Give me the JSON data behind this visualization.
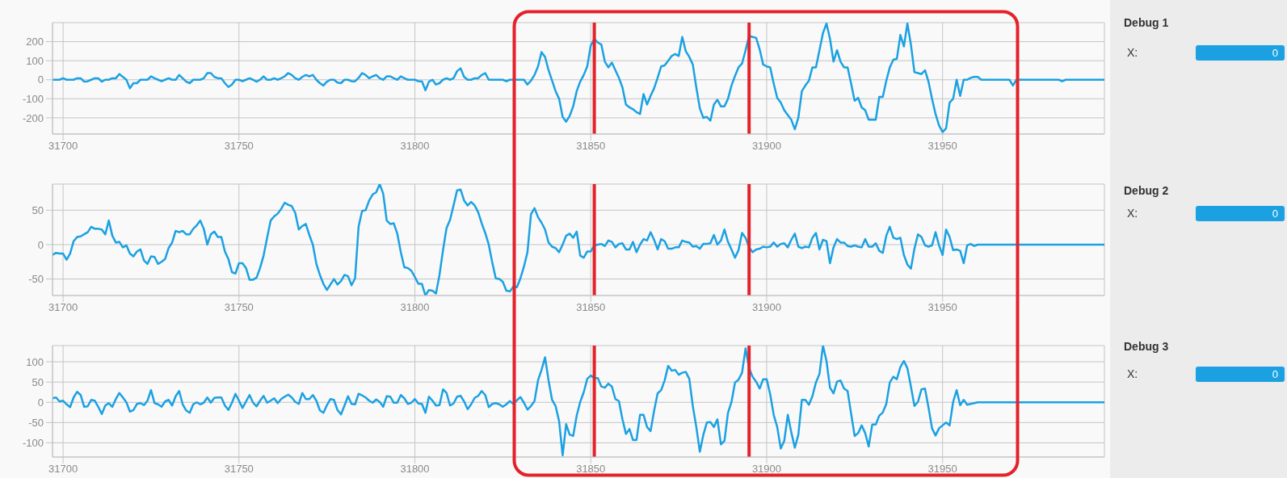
{
  "chart_data": [
    {
      "type": "line",
      "color": "#1ba1e2",
      "xlim": [
        31697,
        31996
      ],
      "xticks": [
        31700,
        31750,
        31800,
        31850,
        31900,
        31950
      ],
      "ylim": [
        -285,
        300
      ],
      "yticks": [
        -200,
        -100,
        0,
        100,
        200
      ],
      "grid": true,
      "ref_lines": [
        {
          "axis": "x",
          "value": 31851,
          "color": "#e3222b"
        },
        {
          "axis": "x",
          "value": 31895,
          "color": "#e3222b"
        }
      ],
      "x": [
        31697,
        31698,
        31699,
        31700,
        31701,
        31702,
        31703,
        31704,
        31705,
        31706,
        31707,
        31708,
        31709,
        31710,
        31711,
        31712,
        31713,
        31714,
        31715,
        31716,
        31717,
        31718,
        31719,
        31720,
        31721,
        31722,
        31723,
        31724,
        31725,
        31726,
        31727,
        31728,
        31729,
        31730,
        31731,
        31732,
        31733,
        31734,
        31735,
        31736,
        31737,
        31738,
        31739,
        31740,
        31741,
        31742,
        31743,
        31744,
        31745,
        31746,
        31747,
        31748,
        31749,
        31750,
        31751,
        31752,
        31753,
        31754,
        31755,
        31756,
        31757,
        31758,
        31759,
        31760,
        31761,
        31762,
        31763,
        31764,
        31765,
        31766,
        31767,
        31768,
        31769,
        31770,
        31771,
        31772,
        31773,
        31774,
        31775,
        31776,
        31777,
        31778,
        31779,
        31780,
        31781,
        31782,
        31783,
        31784,
        31785,
        31786,
        31787,
        31788,
        31789,
        31790,
        31791,
        31792,
        31793,
        31794,
        31795,
        31796,
        31797,
        31798,
        31799,
        31800,
        31801,
        31802,
        31803,
        31804,
        31805,
        31806,
        31807,
        31808,
        31809,
        31810,
        31811,
        31812,
        31813,
        31814,
        31815,
        31816,
        31817,
        31818,
        31819,
        31820,
        31821,
        31822,
        31823,
        31824,
        31825,
        31826,
        31827,
        31828,
        31829,
        31830,
        31831,
        31832,
        31833,
        31834,
        31835,
        31836,
        31837,
        31838,
        31839,
        31840,
        31841,
        31842,
        31843,
        31844,
        31845,
        31846,
        31847,
        31848,
        31849,
        31850,
        31851,
        31852,
        31853,
        31854,
        31855,
        31856,
        31857,
        31858,
        31859,
        31860,
        31861,
        31862,
        31863,
        31864,
        31865,
        31866,
        31867,
        31868,
        31869,
        31870,
        31871,
        31872,
        31873,
        31874,
        31875,
        31876,
        31877,
        31878,
        31879,
        31880,
        31881,
        31882,
        31883,
        31884,
        31885,
        31886,
        31887,
        31888,
        31889,
        31890,
        31891,
        31892,
        31893,
        31894,
        31895,
        31896,
        31897,
        31898,
        31899,
        31900,
        31901,
        31902,
        31903,
        31904,
        31905,
        31906,
        31907,
        31908,
        31909,
        31910,
        31911,
        31912,
        31913,
        31914,
        31915,
        31916,
        31917,
        31918,
        31919,
        31920,
        31921,
        31922,
        31923,
        31924,
        31925,
        31926,
        31927,
        31928,
        31929,
        31930,
        31931,
        31932,
        31933,
        31934,
        31935,
        31936,
        31937,
        31938,
        31939,
        31940,
        31941,
        31942,
        31943,
        31944,
        31945,
        31946,
        31947,
        31948,
        31949,
        31950,
        31951,
        31952,
        31953,
        31954,
        31955,
        31956,
        31957,
        31958,
        31959,
        31960,
        31961,
        31969,
        31970,
        31971,
        31983,
        31984,
        31985,
        31996
      ],
      "values": [
        0,
        0,
        0,
        8,
        0,
        0,
        0,
        8,
        8,
        -10,
        -8,
        0,
        8,
        8,
        -10,
        0,
        0,
        8,
        8,
        30,
        15,
        0,
        -45,
        -18,
        -18,
        0,
        0,
        0,
        18,
        8,
        0,
        -8,
        0,
        8,
        0,
        0,
        25,
        8,
        -10,
        -18,
        0,
        0,
        0,
        8,
        35,
        35,
        15,
        8,
        8,
        -18,
        -38,
        -25,
        0,
        0,
        -8,
        0,
        8,
        0,
        -10,
        0,
        18,
        0,
        0,
        8,
        0,
        8,
        18,
        35,
        25,
        8,
        0,
        15,
        25,
        18,
        25,
        0,
        -18,
        -30,
        -10,
        0,
        0,
        -15,
        -18,
        0,
        0,
        -8,
        -8,
        10,
        35,
        25,
        8,
        18,
        25,
        8,
        0,
        18,
        18,
        8,
        0,
        18,
        8,
        0,
        0,
        0,
        -8,
        -8,
        -55,
        -10,
        0,
        -25,
        -18,
        0,
        8,
        0,
        8,
        45,
        60,
        15,
        0,
        0,
        8,
        8,
        25,
        35,
        0,
        0,
        0,
        0,
        0,
        -8,
        0,
        0,
        0,
        0,
        0,
        -25,
        -5,
        25,
        70,
        145,
        120,
        50,
        -5,
        -60,
        -100,
        -195,
        -220,
        -190,
        -140,
        -60,
        -10,
        25,
        70,
        180,
        215,
        195,
        185,
        95,
        65,
        90,
        50,
        10,
        -40,
        -130,
        -145,
        -155,
        -170,
        -180,
        -75,
        -130,
        -85,
        -45,
        10,
        70,
        75,
        100,
        125,
        135,
        125,
        225,
        150,
        120,
        80,
        -40,
        -150,
        -200,
        -195,
        -215,
        -130,
        -105,
        -140,
        -140,
        -100,
        -30,
        20,
        65,
        85,
        155,
        230,
        225,
        220,
        160,
        80,
        70,
        65,
        -20,
        -95,
        -120,
        -160,
        -185,
        -210,
        -260,
        -200,
        -60,
        -30,
        -5,
        65,
        65,
        155,
        245,
        295,
        215,
        95,
        155,
        95,
        65,
        65,
        -20,
        -110,
        -95,
        -145,
        -160,
        -210,
        -210,
        -210,
        -90,
        -90,
        -5,
        65,
        105,
        110,
        235,
        175,
        295,
        185,
        40,
        35,
        30,
        50,
        -10,
        -100,
        -180,
        -240,
        -275,
        -255,
        -120,
        -100,
        0,
        -85,
        0,
        0,
        10,
        15,
        15,
        0,
        0,
        -30,
        0,
        0,
        -8,
        0,
        0
      ]
    },
    {
      "type": "other",
      "title": "Debug 1",
      "annotations": [
        "X:",
        "0"
      ]
    },
    {
      "type": "line",
      "color": "#1ba1e2",
      "xlim": [
        31697,
        31996
      ],
      "xticks": [
        31700,
        31750,
        31800,
        31850,
        31900,
        31950
      ],
      "ylim": [
        -74,
        88
      ],
      "yticks": [
        -50,
        0,
        50
      ],
      "grid": true,
      "ref_lines": [
        {
          "axis": "x",
          "value": 31851,
          "color": "#e3222b"
        },
        {
          "axis": "x",
          "value": 31895,
          "color": "#e3222b"
        }
      ],
      "x": [
        31697,
        31698,
        31699,
        31700,
        31701,
        31702,
        31703,
        31704,
        31705,
        31706,
        31707,
        31708,
        31709,
        31710,
        31711,
        31712,
        31713,
        31714,
        31715,
        31716,
        31717,
        31718,
        31719,
        31720,
        31721,
        31722,
        31723,
        31724,
        31725,
        31726,
        31727,
        31728,
        31729,
        31730,
        31731,
        31732,
        31733,
        31734,
        31735,
        31736,
        31737,
        31738,
        31739,
        31740,
        31741,
        31742,
        31743,
        31744,
        31745,
        31746,
        31747,
        31748,
        31749,
        31750,
        31751,
        31752,
        31753,
        31754,
        31755,
        31756,
        31757,
        31758,
        31759,
        31760,
        31761,
        31762,
        31763,
        31764,
        31765,
        31766,
        31767,
        31768,
        31769,
        31770,
        31771,
        31772,
        31773,
        31774,
        31775,
        31776,
        31777,
        31778,
        31779,
        31780,
        31781,
        31782,
        31783,
        31784,
        31785,
        31786,
        31787,
        31788,
        31789,
        31790,
        31791,
        31792,
        31793,
        31794,
        31795,
        31796,
        31797,
        31798,
        31799,
        31800,
        31801,
        31802,
        31803,
        31804,
        31805,
        31806,
        31807,
        31808,
        31809,
        31810,
        31811,
        31812,
        31813,
        31814,
        31815,
        31816,
        31817,
        31818,
        31819,
        31820,
        31821,
        31822,
        31823,
        31824,
        31825,
        31826,
        31827,
        31828,
        31829,
        31830,
        31831,
        31832,
        31833,
        31834,
        31835,
        31836,
        31837,
        31838,
        31839,
        31840,
        31841,
        31842,
        31843,
        31844,
        31845,
        31846,
        31847,
        31848,
        31849,
        31850,
        31851,
        31852,
        31853,
        31854,
        31855,
        31856,
        31857,
        31858,
        31859,
        31860,
        31861,
        31862,
        31863,
        31864,
        31865,
        31866,
        31867,
        31868,
        31869,
        31870,
        31871,
        31872,
        31873,
        31874,
        31875,
        31876,
        31877,
        31878,
        31879,
        31880,
        31881,
        31882,
        31883,
        31884,
        31885,
        31886,
        31887,
        31888,
        31889,
        31890,
        31891,
        31892,
        31893,
        31894,
        31895,
        31896,
        31897,
        31898,
        31899,
        31900,
        31901,
        31902,
        31903,
        31904,
        31905,
        31906,
        31907,
        31908,
        31909,
        31910,
        31911,
        31912,
        31913,
        31914,
        31915,
        31916,
        31917,
        31918,
        31919,
        31920,
        31921,
        31922,
        31923,
        31924,
        31925,
        31926,
        31927,
        31928,
        31929,
        31930,
        31931,
        31932,
        31933,
        31934,
        31935,
        31936,
        31937,
        31938,
        31939,
        31940,
        31941,
        31942,
        31943,
        31944,
        31945,
        31946,
        31947,
        31948,
        31949,
        31950,
        31951,
        31952,
        31953,
        31954,
        31955,
        31956,
        31957,
        31958,
        31959,
        31960,
        31996
      ],
      "values": [
        -15,
        -12,
        -13,
        -13,
        -22,
        -13,
        5,
        11,
        12,
        15,
        18,
        26,
        23,
        23,
        22,
        15,
        35,
        13,
        3,
        4,
        -4,
        -1,
        -13,
        -17,
        -10,
        -7,
        -23,
        -28,
        -17,
        -18,
        -28,
        -25,
        -21,
        -5,
        3,
        20,
        18,
        20,
        15,
        15,
        23,
        28,
        35,
        23,
        0,
        15,
        19,
        11,
        11,
        -10,
        -21,
        -40,
        -42,
        -27,
        -27,
        -34,
        -51,
        -51,
        -48,
        -34,
        -16,
        10,
        35,
        41,
        45,
        52,
        61,
        58,
        56,
        46,
        22,
        27,
        30,
        14,
        0,
        -28,
        -44,
        -57,
        -66,
        -58,
        -50,
        -58,
        -53,
        -44,
        -46,
        -59,
        -49,
        26,
        49,
        50,
        64,
        73,
        76,
        88,
        74,
        35,
        30,
        31,
        16,
        -11,
        -33,
        -34,
        -38,
        -47,
        -57,
        -57,
        -74,
        -66,
        -67,
        -71,
        -44,
        -8,
        24,
        36,
        57,
        79,
        80,
        64,
        57,
        62,
        57,
        47,
        31,
        17,
        0,
        -26,
        -49,
        -50,
        -54,
        -67,
        -68,
        -61,
        -62,
        -49,
        -32,
        -11,
        44,
        53,
        40,
        32,
        22,
        3,
        -3,
        -5,
        -11,
        0,
        13,
        16,
        10,
        19,
        -16,
        -19,
        -10,
        -10,
        -1,
        0,
        1,
        -2,
        6,
        4,
        -4,
        1,
        2,
        -7,
        -7,
        4,
        -11,
        0,
        8,
        6,
        18,
        7,
        -7,
        8,
        5,
        -6,
        -6,
        -4,
        -4,
        6,
        4,
        3,
        -3,
        -2,
        -6,
        1,
        1,
        2,
        14,
        0,
        6,
        22,
        4,
        -7,
        -19,
        -8,
        17,
        10,
        -4,
        -11,
        -7,
        -6,
        -3,
        -4,
        -3,
        3,
        -3,
        1,
        2,
        -4,
        7,
        16,
        -3,
        -5,
        -3,
        -4,
        10,
        17,
        -7,
        7,
        5,
        -27,
        -4,
        8,
        3,
        3,
        -2,
        -3,
        -1,
        -3,
        -4,
        8,
        -3,
        -3,
        2,
        -9,
        -12,
        13,
        26,
        10,
        8,
        10,
        -15,
        -29,
        -35,
        -6,
        15,
        11,
        -1,
        -3,
        -1,
        18,
        -1,
        -15,
        22,
        11,
        -8,
        -7,
        -9,
        -27,
        -1,
        1,
        -2,
        0,
        0
      ]
    },
    {
      "type": "other",
      "title": "Debug 2",
      "annotations": [
        "X:",
        "0"
      ]
    },
    {
      "type": "line",
      "color": "#1ba1e2",
      "xlim": [
        31697,
        31996
      ],
      "xticks": [
        31700,
        31750,
        31800,
        31850,
        31900,
        31950
      ],
      "ylim": [
        -135,
        140
      ],
      "yticks": [
        -100,
        -50,
        0,
        50,
        100
      ],
      "grid": true,
      "ref_lines": [
        {
          "axis": "x",
          "value": 31851,
          "color": "#e3222b"
        },
        {
          "axis": "x",
          "value": 31895,
          "color": "#e3222b"
        }
      ],
      "x": [
        31697,
        31698,
        31699,
        31700,
        31701,
        31702,
        31703,
        31704,
        31705,
        31706,
        31707,
        31708,
        31709,
        31710,
        31711,
        31712,
        31713,
        31714,
        31715,
        31716,
        31717,
        31718,
        31719,
        31720,
        31721,
        31722,
        31723,
        31724,
        31725,
        31726,
        31727,
        31728,
        31729,
        31730,
        31731,
        31732,
        31733,
        31734,
        31735,
        31736,
        31737,
        31738,
        31739,
        31740,
        31741,
        31742,
        31743,
        31744,
        31745,
        31746,
        31747,
        31748,
        31749,
        31750,
        31751,
        31752,
        31753,
        31754,
        31755,
        31756,
        31757,
        31758,
        31759,
        31760,
        31761,
        31762,
        31763,
        31764,
        31765,
        31766,
        31767,
        31768,
        31769,
        31770,
        31771,
        31772,
        31773,
        31774,
        31775,
        31776,
        31777,
        31778,
        31779,
        31780,
        31781,
        31782,
        31783,
        31784,
        31785,
        31786,
        31787,
        31788,
        31789,
        31790,
        31791,
        31792,
        31793,
        31794,
        31795,
        31796,
        31797,
        31798,
        31799,
        31800,
        31801,
        31802,
        31803,
        31804,
        31805,
        31806,
        31807,
        31808,
        31809,
        31810,
        31811,
        31812,
        31813,
        31814,
        31815,
        31816,
        31817,
        31818,
        31819,
        31820,
        31821,
        31822,
        31823,
        31824,
        31825,
        31826,
        31827,
        31828,
        31829,
        31830,
        31831,
        31832,
        31833,
        31834,
        31835,
        31836,
        31837,
        31838,
        31839,
        31840,
        31841,
        31842,
        31843,
        31844,
        31845,
        31846,
        31847,
        31848,
        31849,
        31850,
        31851,
        31852,
        31853,
        31854,
        31855,
        31856,
        31857,
        31858,
        31859,
        31860,
        31861,
        31862,
        31863,
        31864,
        31865,
        31866,
        31867,
        31868,
        31869,
        31870,
        31871,
        31872,
        31873,
        31874,
        31875,
        31876,
        31877,
        31878,
        31879,
        31880,
        31881,
        31882,
        31883,
        31884,
        31885,
        31886,
        31887,
        31888,
        31889,
        31890,
        31891,
        31892,
        31893,
        31894,
        31895,
        31896,
        31897,
        31898,
        31899,
        31900,
        31901,
        31902,
        31903,
        31904,
        31905,
        31906,
        31907,
        31908,
        31909,
        31910,
        31911,
        31912,
        31913,
        31914,
        31915,
        31916,
        31917,
        31918,
        31919,
        31920,
        31921,
        31922,
        31923,
        31924,
        31925,
        31926,
        31927,
        31928,
        31929,
        31930,
        31931,
        31932,
        31933,
        31934,
        31935,
        31936,
        31937,
        31938,
        31939,
        31940,
        31941,
        31942,
        31943,
        31944,
        31945,
        31946,
        31947,
        31948,
        31949,
        31950,
        31951,
        31952,
        31953,
        31954,
        31955,
        31956,
        31957,
        31958,
        31959,
        31960,
        31996
      ],
      "values": [
        10,
        12,
        2,
        4,
        -5,
        -12,
        12,
        26,
        18,
        -11,
        -10,
        6,
        4,
        -11,
        -29,
        -8,
        -2,
        -11,
        8,
        23,
        12,
        0,
        -23,
        -19,
        -4,
        -2,
        -7,
        4,
        30,
        -2,
        -5,
        -11,
        2,
        6,
        -8,
        15,
        28,
        -5,
        -20,
        -26,
        -5,
        0,
        -5,
        -1,
        12,
        -1,
        11,
        12,
        12,
        -8,
        -19,
        -1,
        21,
        4,
        -14,
        2,
        18,
        -1,
        -10,
        4,
        16,
        -1,
        4,
        10,
        -2,
        8,
        14,
        19,
        12,
        1,
        -4,
        23,
        8,
        8,
        18,
        4,
        -20,
        -26,
        -7,
        8,
        6,
        -19,
        -30,
        -8,
        15,
        -4,
        -5,
        21,
        17,
        12,
        4,
        -1,
        7,
        1,
        -11,
        15,
        14,
        -1,
        -1,
        18,
        10,
        -4,
        -1,
        8,
        -3,
        -4,
        -26,
        14,
        4,
        -8,
        -7,
        32,
        23,
        -8,
        -3,
        14,
        16,
        2,
        -17,
        -5,
        11,
        16,
        28,
        18,
        -12,
        -4,
        -2,
        -5,
        -11,
        -5,
        3,
        -4,
        5,
        13,
        -1,
        -18,
        -9,
        3,
        54,
        80,
        111,
        54,
        6,
        -9,
        -47,
        -131,
        -54,
        -80,
        -83,
        -33,
        1,
        25,
        58,
        66,
        60,
        60,
        39,
        36,
        46,
        39,
        8,
        3,
        -42,
        -78,
        -66,
        -93,
        -93,
        -31,
        -31,
        -61,
        -71,
        -21,
        22,
        30,
        54,
        90,
        78,
        80,
        68,
        73,
        75,
        58,
        -9,
        -61,
        -122,
        -80,
        -50,
        -49,
        -61,
        -42,
        -104,
        -95,
        -26,
        1,
        49,
        56,
        73,
        133,
        84,
        63,
        51,
        34,
        57,
        57,
        20,
        -31,
        -61,
        -114,
        -95,
        -31,
        -74,
        -112,
        -80,
        6,
        6,
        -6,
        15,
        49,
        70,
        140,
        102,
        36,
        22,
        51,
        54,
        34,
        28,
        -28,
        -83,
        -76,
        -57,
        -76,
        -109,
        -55,
        -55,
        -33,
        -25,
        -4,
        49,
        63,
        57,
        87,
        102,
        84,
        39,
        -9,
        1,
        32,
        34,
        -13,
        -64,
        -82,
        -64,
        -57,
        -50,
        -57,
        1,
        30,
        -7,
        6,
        -6,
        -4,
        -2,
        0,
        0
      ]
    },
    {
      "type": "other",
      "title": "Debug 3",
      "annotations": [
        "X:",
        "0"
      ]
    }
  ]
}
